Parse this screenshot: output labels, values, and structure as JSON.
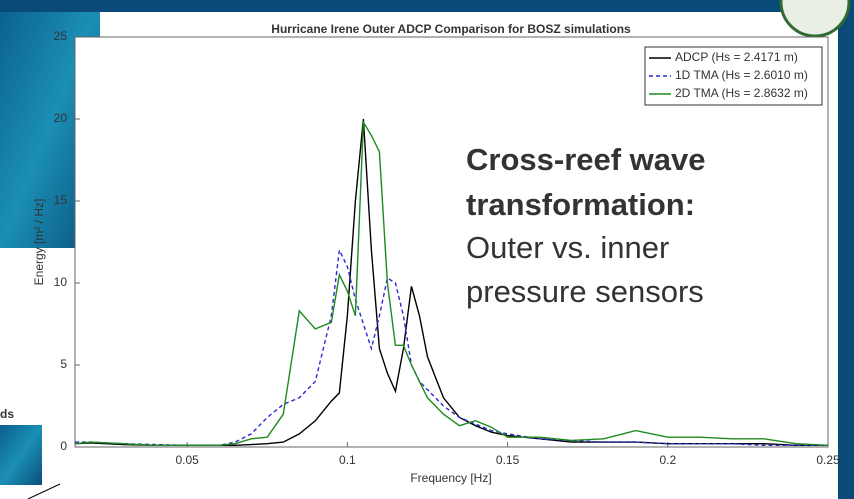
{
  "chart_data": {
    "type": "line",
    "title": "Hurricane Irene Outer ADCP Comparison for BOSZ simulations",
    "xlabel": "Frequency [Hz]",
    "ylabel": "Energy [m² / Hz]",
    "x": [
      0.015,
      0.02,
      0.03,
      0.04,
      0.05,
      0.06,
      0.065,
      0.07,
      0.075,
      0.08,
      0.085,
      0.09,
      0.095,
      0.0975,
      0.1,
      0.1025,
      0.105,
      0.1075,
      0.11,
      0.1125,
      0.115,
      0.1175,
      0.12,
      0.1225,
      0.125,
      0.13,
      0.135,
      0.14,
      0.145,
      0.15,
      0.16,
      0.17,
      0.18,
      0.19,
      0.2,
      0.21,
      0.22,
      0.23,
      0.24,
      0.25
    ],
    "series": [
      {
        "name": "ADCP (Hs = 2.4171 m)",
        "color": "#000000",
        "dash": false,
        "values": [
          0.2,
          0.25,
          0.15,
          0.1,
          0.1,
          0.1,
          0.1,
          0.15,
          0.2,
          0.3,
          0.8,
          1.6,
          2.8,
          3.3,
          8,
          15,
          20,
          12,
          6,
          4.5,
          3.4,
          6,
          9.8,
          8,
          5.5,
          3,
          1.8,
          1.3,
          0.9,
          0.7,
          0.5,
          0.3,
          0.3,
          0.3,
          0.2,
          0.2,
          0.2,
          0.2,
          0.1,
          0.1
        ]
      },
      {
        "name": "1D TMA (Hs = 2.6010 m)",
        "color": "#2b2bd6",
        "dash": true,
        "values": [
          0.3,
          0.3,
          0.2,
          0.15,
          0.1,
          0.1,
          0.3,
          0.8,
          1.8,
          2.6,
          3,
          4,
          8,
          12,
          11,
          9,
          7.5,
          6,
          8,
          10.3,
          10,
          8,
          5,
          4,
          3.5,
          2.5,
          1.8,
          1.4,
          1,
          0.8,
          0.5,
          0.4,
          0.3,
          0.3,
          0.2,
          0.2,
          0.2,
          0.1,
          0.1,
          0.1
        ]
      },
      {
        "name": "2D TMA (Hs = 2.8632 m)",
        "color": "#1f8a1f",
        "dash": false,
        "values": [
          0.2,
          0.3,
          0.2,
          0.1,
          0.1,
          0.1,
          0.2,
          0.5,
          0.6,
          2,
          8.3,
          7.2,
          7.6,
          10.5,
          9.5,
          8,
          19.8,
          19,
          18,
          10,
          6.2,
          6.2,
          5,
          4,
          3,
          2,
          1.3,
          1.6,
          1.2,
          0.6,
          0.6,
          0.4,
          0.5,
          1,
          0.6,
          0.6,
          0.5,
          0.5,
          0.2,
          0.1
        ]
      }
    ],
    "xlim": [
      0.015,
      0.25
    ],
    "ylim": [
      0,
      25
    ],
    "xticks": [
      0.05,
      0.1,
      0.15,
      0.2,
      0.25
    ],
    "yticks": [
      0,
      5,
      10,
      15,
      20,
      25
    ],
    "legend": "top-right",
    "annotation": {
      "heading": [
        "Cross-reef wave",
        "transformation:"
      ],
      "body": [
        "Outer vs. inner",
        "pressure sensors"
      ]
    }
  },
  "slide": {
    "fragment": "ds"
  }
}
